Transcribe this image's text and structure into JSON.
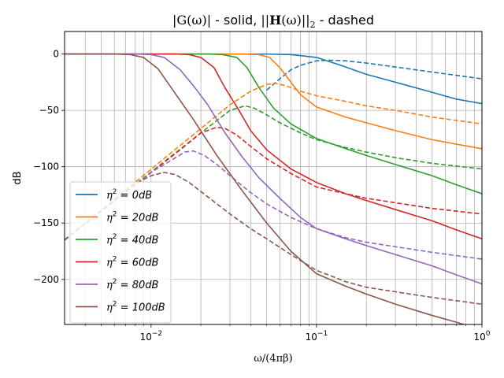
{
  "chart_data": {
    "type": "line",
    "title_parts": {
      "g": "|G(ω)|",
      "solid": " - solid, ",
      "h_open": "||",
      "h_bold": "H",
      "h_arg": "(ω)||",
      "h_sub": "2",
      "dashed": " - dashed"
    },
    "xlabel": "ω/(4πβ)",
    "ylabel": "dB",
    "xscale": "log",
    "xlim": [
      0.003,
      1.0
    ],
    "ylim": [
      -240,
      20
    ],
    "grid": {
      "major": true,
      "minor_x": true
    },
    "legend": {
      "location": "lower left"
    },
    "x_tick_labels": [
      {
        "value": 0.01,
        "base": "10",
        "exp": "−2"
      },
      {
        "value": 0.1,
        "base": "10",
        "exp": "−1"
      },
      {
        "value": 1,
        "base": "10",
        "exp": "0"
      }
    ],
    "y_ticks": [
      0,
      -50,
      -100,
      -150,
      -200
    ],
    "y_tick_labels": [
      "0",
      "−50",
      "−100",
      "−150",
      "−200"
    ],
    "line_styles": {
      "solid": "|G(ω)|",
      "dashed": "||H(ω)||₂"
    },
    "series": [
      {
        "label_sym": "η",
        "label_sup": "2",
        "label_rest": " = 0dB",
        "color": "#1f77b4",
        "solid": [
          [
            0.003,
            0
          ],
          [
            0.05,
            0
          ],
          [
            0.07,
            -0.5
          ],
          [
            0.1,
            -3
          ],
          [
            0.14,
            -10
          ],
          [
            0.2,
            -18
          ],
          [
            0.3,
            -25
          ],
          [
            0.5,
            -34
          ],
          [
            0.7,
            -40
          ],
          [
            1.0,
            -44
          ]
        ],
        "dashed": [
          [
            0.05,
            -32
          ],
          [
            0.06,
            -22
          ],
          [
            0.07,
            -14
          ],
          [
            0.08,
            -10
          ],
          [
            0.1,
            -6
          ],
          [
            0.12,
            -5.5
          ],
          [
            0.15,
            -6
          ],
          [
            0.2,
            -8
          ],
          [
            0.3,
            -11.5
          ],
          [
            0.5,
            -16
          ],
          [
            1.0,
            -22
          ]
        ]
      },
      {
        "label_sym": "η",
        "label_sup": "2",
        "label_rest": " = 20dB",
        "color": "#ff7f0e",
        "solid": [
          [
            0.003,
            0
          ],
          [
            0.035,
            0
          ],
          [
            0.045,
            -0.5
          ],
          [
            0.052,
            -3
          ],
          [
            0.06,
            -12
          ],
          [
            0.07,
            -25
          ],
          [
            0.08,
            -36
          ],
          [
            0.1,
            -47
          ],
          [
            0.15,
            -56
          ],
          [
            0.2,
            -61
          ],
          [
            0.3,
            -68
          ],
          [
            0.5,
            -76
          ],
          [
            0.7,
            -80
          ],
          [
            1.0,
            -84
          ]
        ],
        "dashed": [
          [
            0.003,
            -165
          ],
          [
            0.03,
            -45
          ],
          [
            0.04,
            -33
          ],
          [
            0.05,
            -27
          ],
          [
            0.056,
            -26
          ],
          [
            0.065,
            -28
          ],
          [
            0.08,
            -33
          ],
          [
            0.1,
            -37
          ],
          [
            0.15,
            -42
          ],
          [
            0.2,
            -46
          ],
          [
            0.3,
            -50
          ],
          [
            0.5,
            -56
          ],
          [
            1.0,
            -62
          ]
        ]
      },
      {
        "label_sym": "η",
        "label_sup": "2",
        "label_rest": " = 40dB",
        "color": "#2ca02c",
        "solid": [
          [
            0.003,
            0
          ],
          [
            0.022,
            0
          ],
          [
            0.027,
            -0.5
          ],
          [
            0.033,
            -3
          ],
          [
            0.038,
            -12
          ],
          [
            0.045,
            -30
          ],
          [
            0.055,
            -48
          ],
          [
            0.07,
            -62
          ],
          [
            0.1,
            -75
          ],
          [
            0.15,
            -84
          ],
          [
            0.2,
            -90
          ],
          [
            0.3,
            -98
          ],
          [
            0.5,
            -108
          ],
          [
            0.7,
            -116
          ],
          [
            1.0,
            -124
          ]
        ],
        "dashed": [
          [
            0.003,
            -165
          ],
          [
            0.02,
            -70
          ],
          [
            0.03,
            -50
          ],
          [
            0.037,
            -46
          ],
          [
            0.042,
            -48
          ],
          [
            0.05,
            -54
          ],
          [
            0.06,
            -61
          ],
          [
            0.08,
            -70
          ],
          [
            0.1,
            -76
          ],
          [
            0.15,
            -83
          ],
          [
            0.2,
            -87
          ],
          [
            0.3,
            -92
          ],
          [
            0.5,
            -97
          ],
          [
            1.0,
            -102
          ]
        ]
      },
      {
        "label_sym": "η",
        "label_sup": "2",
        "label_rest": " = 60dB",
        "color": "#d62728",
        "solid": [
          [
            0.003,
            0
          ],
          [
            0.014,
            0
          ],
          [
            0.017,
            -0.5
          ],
          [
            0.02,
            -3
          ],
          [
            0.024,
            -12
          ],
          [
            0.028,
            -30
          ],
          [
            0.034,
            -50
          ],
          [
            0.04,
            -68
          ],
          [
            0.05,
            -85
          ],
          [
            0.07,
            -102
          ],
          [
            0.1,
            -114
          ],
          [
            0.15,
            -124
          ],
          [
            0.2,
            -130
          ],
          [
            0.3,
            -138
          ],
          [
            0.5,
            -148
          ],
          [
            0.7,
            -156
          ],
          [
            1.0,
            -164
          ]
        ],
        "dashed": [
          [
            0.003,
            -165
          ],
          [
            0.015,
            -85
          ],
          [
            0.02,
            -70
          ],
          [
            0.025,
            -65
          ],
          [
            0.028,
            -66
          ],
          [
            0.033,
            -72
          ],
          [
            0.04,
            -82
          ],
          [
            0.05,
            -93
          ],
          [
            0.07,
            -106
          ],
          [
            0.1,
            -118
          ],
          [
            0.15,
            -124
          ],
          [
            0.2,
            -128
          ],
          [
            0.3,
            -132
          ],
          [
            0.5,
            -137
          ],
          [
            1.0,
            -142
          ]
        ]
      },
      {
        "label_sym": "η",
        "label_sup": "2",
        "label_rest": " = 80dB",
        "color": "#9467bd",
        "solid": [
          [
            0.003,
            0
          ],
          [
            0.008,
            0
          ],
          [
            0.01,
            -0.5
          ],
          [
            0.012,
            -3
          ],
          [
            0.015,
            -14
          ],
          [
            0.018,
            -28
          ],
          [
            0.022,
            -45
          ],
          [
            0.028,
            -70
          ],
          [
            0.035,
            -90
          ],
          [
            0.045,
            -110
          ],
          [
            0.06,
            -128
          ],
          [
            0.08,
            -145
          ],
          [
            0.1,
            -155
          ],
          [
            0.15,
            -164
          ],
          [
            0.2,
            -170
          ],
          [
            0.3,
            -178
          ],
          [
            0.5,
            -188
          ],
          [
            0.7,
            -196
          ],
          [
            1.0,
            -204
          ]
        ],
        "dashed": [
          [
            0.003,
            -165
          ],
          [
            0.01,
            -105
          ],
          [
            0.013,
            -95
          ],
          [
            0.016,
            -87
          ],
          [
            0.018,
            -86
          ],
          [
            0.021,
            -90
          ],
          [
            0.025,
            -98
          ],
          [
            0.03,
            -108
          ],
          [
            0.04,
            -123
          ],
          [
            0.05,
            -133
          ],
          [
            0.07,
            -145
          ],
          [
            0.1,
            -155
          ],
          [
            0.15,
            -163
          ],
          [
            0.2,
            -167
          ],
          [
            0.3,
            -171
          ],
          [
            0.5,
            -176
          ],
          [
            1.0,
            -182
          ]
        ]
      },
      {
        "label_sym": "η",
        "label_sup": "2",
        "label_rest": " = 100dB",
        "color": "#8c564b",
        "solid": [
          [
            0.003,
            0
          ],
          [
            0.006,
            0
          ],
          [
            0.0075,
            -0.5
          ],
          [
            0.009,
            -3
          ],
          [
            0.011,
            -13
          ],
          [
            0.014,
            -35
          ],
          [
            0.018,
            -58
          ],
          [
            0.025,
            -90
          ],
          [
            0.035,
            -120
          ],
          [
            0.05,
            -150
          ],
          [
            0.07,
            -175
          ],
          [
            0.1,
            -195
          ],
          [
            0.15,
            -206
          ],
          [
            0.2,
            -213
          ],
          [
            0.3,
            -222
          ],
          [
            0.5,
            -232
          ],
          [
            0.7,
            -238
          ],
          [
            1.0,
            -245
          ]
        ],
        "dashed": [
          [
            0.003,
            -165
          ],
          [
            0.008,
            -115
          ],
          [
            0.01,
            -108
          ],
          [
            0.012,
            -105
          ],
          [
            0.014,
            -107
          ],
          [
            0.017,
            -114
          ],
          [
            0.02,
            -122
          ],
          [
            0.025,
            -133
          ],
          [
            0.03,
            -142
          ],
          [
            0.04,
            -155
          ],
          [
            0.05,
            -164
          ],
          [
            0.07,
            -178
          ],
          [
            0.1,
            -192
          ],
          [
            0.15,
            -202
          ],
          [
            0.2,
            -207
          ],
          [
            0.3,
            -211
          ],
          [
            0.5,
            -216
          ],
          [
            1.0,
            -222
          ]
        ]
      }
    ]
  }
}
